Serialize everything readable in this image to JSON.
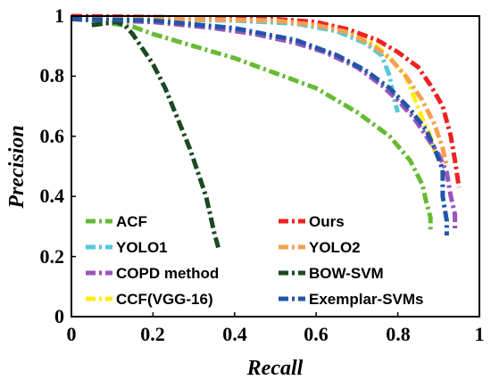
{
  "chart_data": {
    "type": "line",
    "xlabel": "Recall",
    "ylabel": "Precision",
    "xlim": [
      0,
      1
    ],
    "ylim": [
      0,
      1
    ],
    "xticks": [
      "0",
      "0.2",
      "0.4",
      "0.6",
      "0.8",
      "1"
    ],
    "yticks": [
      "0",
      "0.2",
      "0.4",
      "0.6",
      "0.8",
      "1"
    ],
    "grid": false,
    "legend_position": "bottom",
    "series": [
      {
        "name": "ACF",
        "color": "#66bb33",
        "points": [
          [
            0,
            0.99
          ],
          [
            0.05,
            0.985
          ],
          [
            0.1,
            0.975
          ],
          [
            0.15,
            0.965
          ],
          [
            0.2,
            0.94
          ],
          [
            0.3,
            0.9
          ],
          [
            0.4,
            0.86
          ],
          [
            0.5,
            0.81
          ],
          [
            0.6,
            0.76
          ],
          [
            0.7,
            0.68
          ],
          [
            0.78,
            0.6
          ],
          [
            0.83,
            0.52
          ],
          [
            0.86,
            0.44
          ],
          [
            0.87,
            0.38
          ],
          [
            0.88,
            0.33
          ],
          [
            0.88,
            0.29
          ]
        ]
      },
      {
        "name": "YOLO1",
        "color": "#55c8d8",
        "points": [
          [
            0,
            0.995
          ],
          [
            0.2,
            0.99
          ],
          [
            0.4,
            0.985
          ],
          [
            0.55,
            0.975
          ],
          [
            0.65,
            0.95
          ],
          [
            0.72,
            0.91
          ],
          [
            0.76,
            0.87
          ],
          [
            0.78,
            0.8
          ],
          [
            0.79,
            0.73
          ],
          [
            0.8,
            0.68
          ]
        ]
      },
      {
        "name": "COPD method",
        "color": "#9955bb",
        "points": [
          [
            0,
            0.99
          ],
          [
            0.2,
            0.98
          ],
          [
            0.35,
            0.96
          ],
          [
            0.45,
            0.94
          ],
          [
            0.55,
            0.91
          ],
          [
            0.62,
            0.88
          ],
          [
            0.7,
            0.83
          ],
          [
            0.76,
            0.77
          ],
          [
            0.8,
            0.72
          ],
          [
            0.84,
            0.66
          ],
          [
            0.87,
            0.6
          ],
          [
            0.9,
            0.54
          ],
          [
            0.92,
            0.48
          ],
          [
            0.93,
            0.4
          ],
          [
            0.94,
            0.34
          ],
          [
            0.94,
            0.29
          ]
        ]
      },
      {
        "name": "CCF(VGG-16)",
        "color": "#ffee11",
        "points": [
          [
            0,
            0.99
          ],
          [
            0.3,
            0.99
          ],
          [
            0.5,
            0.985
          ],
          [
            0.6,
            0.975
          ],
          [
            0.68,
            0.95
          ],
          [
            0.74,
            0.91
          ],
          [
            0.78,
            0.86
          ],
          [
            0.82,
            0.8
          ],
          [
            0.84,
            0.73
          ],
          [
            0.86,
            0.66
          ],
          [
            0.88,
            0.6
          ],
          [
            0.89,
            0.55
          ]
        ]
      },
      {
        "name": "Ours",
        "color": "#ee2222",
        "points": [
          [
            0,
            1.0
          ],
          [
            0.3,
            0.995
          ],
          [
            0.5,
            0.99
          ],
          [
            0.6,
            0.98
          ],
          [
            0.68,
            0.955
          ],
          [
            0.75,
            0.92
          ],
          [
            0.8,
            0.88
          ],
          [
            0.85,
            0.83
          ],
          [
            0.88,
            0.77
          ],
          [
            0.91,
            0.7
          ],
          [
            0.93,
            0.6
          ],
          [
            0.94,
            0.52
          ],
          [
            0.95,
            0.43
          ]
        ]
      },
      {
        "name": "YOLO2",
        "color": "#f5a050",
        "points": [
          [
            0,
            0.995
          ],
          [
            0.3,
            0.99
          ],
          [
            0.5,
            0.985
          ],
          [
            0.6,
            0.97
          ],
          [
            0.68,
            0.945
          ],
          [
            0.74,
            0.9
          ],
          [
            0.78,
            0.86
          ],
          [
            0.82,
            0.8
          ],
          [
            0.86,
            0.72
          ],
          [
            0.89,
            0.64
          ],
          [
            0.91,
            0.56
          ],
          [
            0.92,
            0.5
          ]
        ]
      },
      {
        "name": "BOW-SVM",
        "color": "#1a4a22",
        "points": [
          [
            0.05,
            0.97
          ],
          [
            0.08,
            0.975
          ],
          [
            0.11,
            0.98
          ],
          [
            0.13,
            0.97
          ],
          [
            0.15,
            0.94
          ],
          [
            0.17,
            0.9
          ],
          [
            0.2,
            0.84
          ],
          [
            0.23,
            0.76
          ],
          [
            0.26,
            0.66
          ],
          [
            0.29,
            0.56
          ],
          [
            0.31,
            0.48
          ],
          [
            0.33,
            0.4
          ],
          [
            0.34,
            0.34
          ],
          [
            0.35,
            0.28
          ],
          [
            0.36,
            0.23
          ]
        ]
      },
      {
        "name": "Exemplar-SVMs",
        "color": "#2255aa",
        "points": [
          [
            0,
            0.99
          ],
          [
            0.2,
            0.985
          ],
          [
            0.4,
            0.96
          ],
          [
            0.55,
            0.92
          ],
          [
            0.65,
            0.87
          ],
          [
            0.72,
            0.82
          ],
          [
            0.78,
            0.76
          ],
          [
            0.83,
            0.69
          ],
          [
            0.87,
            0.62
          ],
          [
            0.89,
            0.56
          ],
          [
            0.91,
            0.49
          ],
          [
            0.91,
            0.4
          ],
          [
            0.92,
            0.32
          ],
          [
            0.92,
            0.27
          ]
        ]
      }
    ]
  }
}
